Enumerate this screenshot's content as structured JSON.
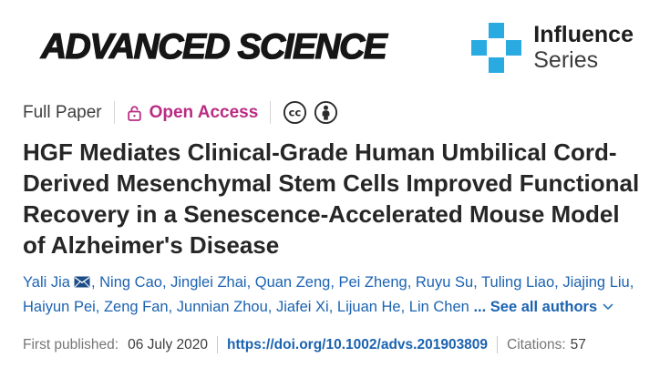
{
  "journal": {
    "logo_text": "ADVANCED SCIENCE"
  },
  "influence": {
    "line1": "Influence",
    "line2": "Series"
  },
  "meta": {
    "article_type": "Full Paper",
    "open_access_label": "Open Access",
    "license_icons": [
      "cc-icon",
      "attribution-by-icon"
    ]
  },
  "title": "HGF Mediates Clinical-Grade Human Umbilical Cord-Derived Mesenchymal Stem Cells Improved Functional Recovery in a Senescence-Accelerated Mouse Model of Alzheimer's Disease",
  "authors": {
    "names": [
      "Yali Jia",
      "Ning Cao",
      "Jinglei Zhai",
      "Quan Zeng",
      "Pei Zheng",
      "Ruyu Su",
      "Tuling Liao",
      "Jiajing Liu",
      "Haiyun Pei",
      "Zeng Fan",
      "Junnian Zhou",
      "Jiafei Xi",
      "Lijuan He",
      "Lin Chen"
    ],
    "corresponding": "Yali Jia",
    "see_all_label": "... See all authors"
  },
  "pubinfo": {
    "first_published_label": "First published:",
    "first_published_date": "06 July 2020",
    "doi_url": "https://doi.org/10.1002/advs.201903809",
    "citations_label": "Citations:",
    "citations_count": "57"
  },
  "colors": {
    "open_access_magenta": "#ba2c82",
    "link_blue": "#1c63b1",
    "influence_blue": "#29abe2",
    "envelope_navy": "#1b4d86",
    "icon_black": "#2b2b2b"
  }
}
